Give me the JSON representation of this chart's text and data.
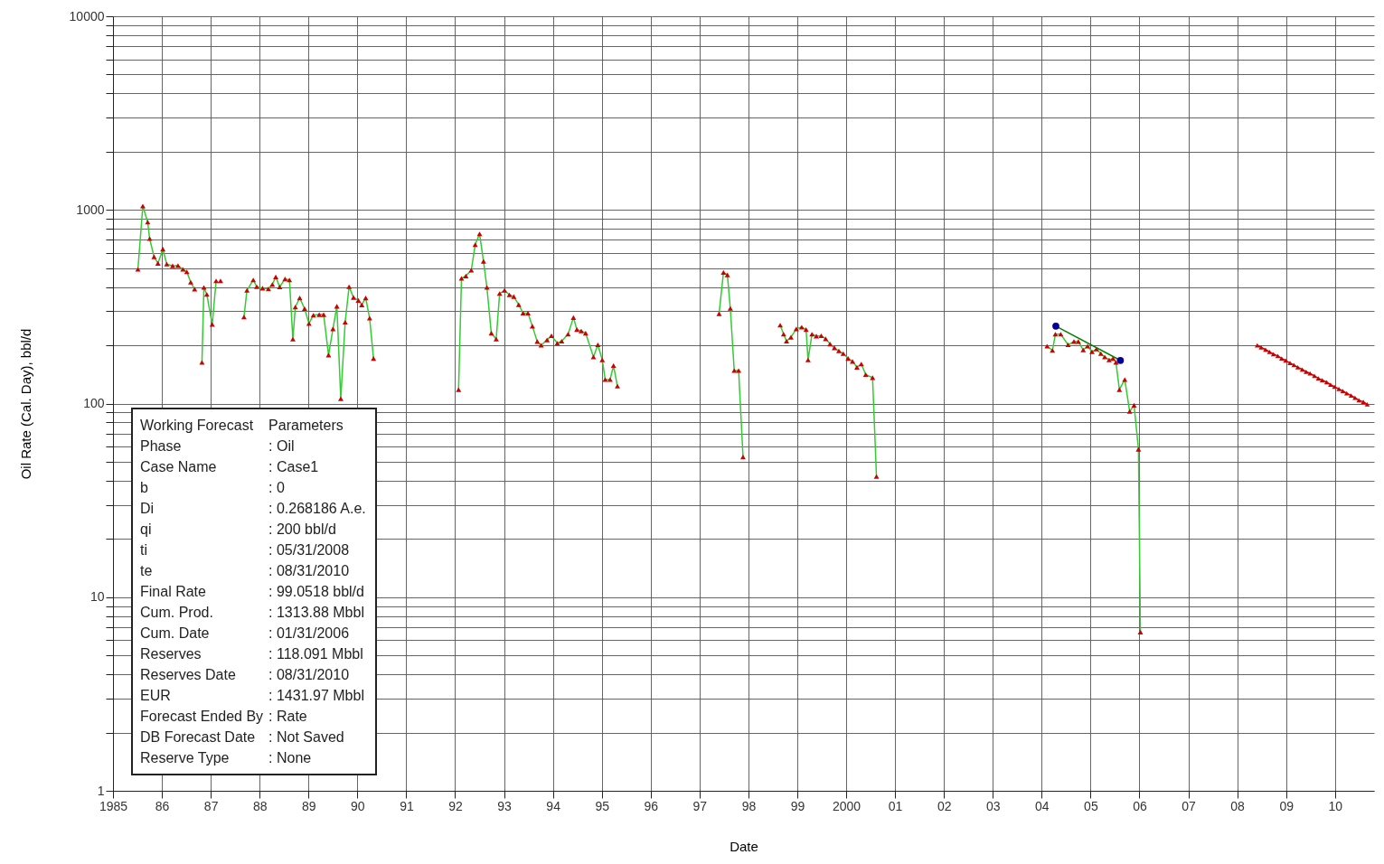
{
  "chart_data": {
    "type": "line",
    "xlabel": "Date",
    "ylabel": "Oil Rate (Cal. Day), bbl/d",
    "log": "y",
    "grid": true,
    "xlim": [
      1985,
      2010.8
    ],
    "ylim": [
      1,
      10000
    ],
    "xticks": [
      1985,
      {
        "value": 1986,
        "label": "86"
      },
      {
        "value": 1987,
        "label": "87"
      },
      {
        "value": 1988,
        "label": "88"
      },
      {
        "value": 1989,
        "label": "89"
      },
      {
        "value": 1990,
        "label": "90"
      },
      {
        "value": 1991,
        "label": "91"
      },
      {
        "value": 1992,
        "label": "92"
      },
      {
        "value": 1993,
        "label": "93"
      },
      {
        "value": 1994,
        "label": "94"
      },
      {
        "value": 1995,
        "label": "95"
      },
      {
        "value": 1996,
        "label": "96"
      },
      {
        "value": 1997,
        "label": "97"
      },
      {
        "value": 1998,
        "label": "98"
      },
      {
        "value": 1999,
        "label": "99"
      },
      2000,
      {
        "value": 2001,
        "label": "01"
      },
      {
        "value": 2002,
        "label": "02"
      },
      {
        "value": 2003,
        "label": "03"
      },
      {
        "value": 2004,
        "label": "04"
      },
      {
        "value": 2005,
        "label": "05"
      },
      {
        "value": 2006,
        "label": "06"
      },
      {
        "value": 2007,
        "label": "07"
      },
      {
        "value": 2008,
        "label": "08"
      },
      {
        "value": 2009,
        "label": "09"
      },
      {
        "value": 2010,
        "label": "10"
      }
    ],
    "yticks": [
      1,
      {
        "value": 2,
        "label": null
      },
      {
        "value": 3,
        "label": null
      },
      {
        "value": 4,
        "label": null
      },
      {
        "value": 5,
        "label": null
      },
      {
        "value": 6,
        "label": null
      },
      {
        "value": 7,
        "label": null
      },
      {
        "value": 8,
        "label": null
      },
      {
        "value": 9,
        "label": null
      },
      10,
      {
        "value": 20,
        "label": null
      },
      {
        "value": 30,
        "label": null
      },
      {
        "value": 40,
        "label": null
      },
      {
        "value": 50,
        "label": null
      },
      {
        "value": 60,
        "label": null
      },
      {
        "value": 70,
        "label": null
      },
      {
        "value": 80,
        "label": null
      },
      {
        "value": 90,
        "label": null
      },
      100,
      {
        "value": 200,
        "label": null
      },
      {
        "value": 300,
        "label": null
      },
      {
        "value": 400,
        "label": null
      },
      {
        "value": 500,
        "label": null
      },
      {
        "value": 600,
        "label": null
      },
      {
        "value": 700,
        "label": null
      },
      {
        "value": 800,
        "label": null
      },
      {
        "value": 900,
        "label": null
      },
      1000,
      {
        "value": 2000,
        "label": null
      },
      {
        "value": 3000,
        "label": null
      },
      {
        "value": 4000,
        "label": null
      },
      {
        "value": 5000,
        "label": null
      },
      {
        "value": 6000,
        "label": null
      },
      {
        "value": 7000,
        "label": null
      },
      {
        "value": 8000,
        "label": null
      },
      {
        "value": 9000,
        "label": null
      },
      10000
    ],
    "annotations": [
      "Working Forecast",
      "Parameters",
      "Phase",
      ": Oil",
      "Case Name",
      ": Case1",
      "b",
      ": 0",
      "Di",
      ": 0.268186 A.e.",
      "qi",
      ": 200 bbl/d",
      "ti",
      ": 05/31/2008",
      "te",
      ": 08/31/2010",
      "Final Rate",
      ": 99.0518 bbl/d",
      "Cum. Prod.",
      ": 1313.88 Mbbl",
      "Cum. Date",
      ": 01/31/2006",
      "Reserves",
      ": 118.091 Mbbl",
      "Reserves Date",
      ": 08/31/2010",
      "EUR",
      ": 1431.97 Mbbl",
      "Forecast Ended By",
      ": Rate",
      "DB Forecast Date",
      ": Not Saved",
      "Reserve Type",
      ": None"
    ],
    "series": [
      {
        "color": "#33cc33",
        "marker": "none",
        "x": [
          1985.51,
          1985.61,
          1985.71,
          1985.75,
          1985.84,
          1985.92,
          1986.02,
          1986.1,
          1986.22,
          1986.33,
          1986.43,
          1986.51,
          1986.59,
          1986.67,
          1986.72,
          1986.82,
          1986.86,
          1986.92,
          1987.03,
          1987.11,
          1987.2,
          1987.3,
          1987.68,
          1987.74,
          1987.87,
          1987.94,
          1988.06,
          1988.18,
          1988.26,
          1988.33,
          1988.41,
          1988.52,
          1988.61,
          1988.68,
          1988.73,
          1988.82,
          1988.92,
          1989.01,
          1989.1,
          1989.22,
          1989.31,
          1989.41,
          1989.5,
          1989.58,
          1989.66,
          1989.75,
          1989.83,
          1989.92,
          1990.02,
          1990.09,
          1990.17,
          1990.25,
          1990.33,
          1991,
          1992.07,
          1992.13,
          1992.22,
          1992.33,
          1992.41,
          1992.5,
          1992.58,
          1992.65,
          1992.74,
          1992.84,
          1992.91,
          1993.01,
          1993.11,
          1993.2,
          1993.3,
          1993.39,
          1993.49,
          1993.58,
          1993.68,
          1993.76,
          1993.88,
          1993.97,
          1994.09,
          1994.18,
          1994.31,
          1994.42,
          1994.49,
          1994.58,
          1994.67,
          1994.83,
          1994.92,
          1995.01,
          1995.07,
          1995.17,
          1995.24,
          1995.32,
          1996,
          1997.4,
          1997.49,
          1997.57,
          1997.63,
          1997.71,
          1997.8,
          1997.89,
          1998.3,
          1998.65,
          1998.72,
          1998.78,
          1998.87,
          1998.98,
          1999.09,
          1999.18,
          1999.22,
          1999.3,
          1999.39,
          1999.49,
          1999.58,
          1999.67,
          1999.76,
          1999.85,
          1999.94,
          2000.04,
          2000.13,
          2000.22,
          2000.31,
          2000.4,
          2000.54,
          2000.62,
          2002,
          2004.11,
          2004.22,
          2004.28,
          2004.39,
          2004.54,
          2004.66,
          2004.75,
          2004.85,
          2004.94,
          2005.03,
          2005.12,
          2005.21,
          2005.29,
          2005.38,
          2005.46,
          2005.52,
          2005.59,
          2005.7,
          2005.8,
          2005.89,
          2005.98,
          2006.02
        ],
        "values": [
          493,
          1047,
          865,
          711,
          573,
          530,
          627,
          525,
          514,
          516,
          493,
          479,
          423,
          390,
          null,
          163,
          398,
          366,
          256,
          430,
          null,
          null,
          280,
          384,
          435,
          401,
          394,
          391,
          412,
          451,
          400,
          440,
          435,
          215,
          315,
          351,
          309,
          259,
          286,
          288,
          288,
          178,
          243,
          318,
          106,
          263,
          401,
          353,
          341,
          323,
          351,
          276,
          171,
          null,
          118,
          443,
          456,
          488,
          661,
          752,
          543,
          398,
          231,
          215,
          370,
          384,
          364,
          357,
          324,
          293,
          293,
          251,
          209,
          200,
          213,
          224,
          205,
          210,
          228,
          278,
          241,
          237,
          231,
          174,
          201,
          168,
          133,
          133,
          157,
          123,
          null,
          291,
          476,
          462,
          310,
          148,
          148,
          53,
          null,
          254,
          228,
          210,
          220,
          243,
          248,
          241,
          168,
          228,
          223,
          224,
          216,
          203,
          194,
          187,
          181,
          171,
          165,
          154,
          160,
          141,
          136,
          42,
          null,
          198,
          188,
          228,
          228,
          201,
          209,
          209,
          189,
          198,
          185,
          191,
          181,
          174,
          168,
          171,
          163,
          118,
          133,
          91,
          98,
          58,
          6.6
        ]
      },
      {
        "type": "scatter",
        "color": "#cc0000",
        "marker": "triangle",
        "x": [
          1985.51,
          1985.61,
          1985.71,
          1985.75,
          1985.84,
          1985.92,
          1986.02,
          1986.1,
          1986.22,
          1986.33,
          1986.43,
          1986.51,
          1986.59,
          1986.67,
          1986.82,
          1986.86,
          1986.92,
          1987.03,
          1987.11,
          1987.2,
          1987.68,
          1987.74,
          1987.87,
          1987.94,
          1988.06,
          1988.18,
          1988.26,
          1988.33,
          1988.41,
          1988.52,
          1988.61,
          1988.68,
          1988.73,
          1988.82,
          1988.92,
          1989.01,
          1989.1,
          1989.22,
          1989.31,
          1989.41,
          1989.5,
          1989.58,
          1989.66,
          1989.75,
          1989.83,
          1989.92,
          1990.02,
          1990.09,
          1990.17,
          1990.25,
          1990.33,
          1992.07,
          1992.13,
          1992.22,
          1992.33,
          1992.41,
          1992.5,
          1992.58,
          1992.65,
          1992.74,
          1992.84,
          1992.91,
          1993.01,
          1993.11,
          1993.2,
          1993.3,
          1993.39,
          1993.49,
          1993.58,
          1993.68,
          1993.76,
          1993.88,
          1993.97,
          1994.09,
          1994.18,
          1994.31,
          1994.42,
          1994.49,
          1994.58,
          1994.67,
          1994.83,
          1994.92,
          1995.01,
          1995.07,
          1995.17,
          1995.24,
          1995.32,
          1997.4,
          1997.49,
          1997.57,
          1997.63,
          1997.71,
          1997.8,
          1997.89,
          1998.65,
          1998.72,
          1998.78,
          1998.87,
          1998.98,
          1999.09,
          1999.18,
          1999.22,
          1999.3,
          1999.39,
          1999.49,
          1999.58,
          1999.67,
          1999.76,
          1999.85,
          1999.94,
          2000.04,
          2000.13,
          2000.22,
          2000.31,
          2000.4,
          2000.54,
          2000.62,
          2004.11,
          2004.22,
          2004.28,
          2004.39,
          2004.54,
          2004.66,
          2004.75,
          2004.85,
          2004.94,
          2005.03,
          2005.12,
          2005.21,
          2005.29,
          2005.38,
          2005.46,
          2005.52,
          2005.59,
          2005.7,
          2005.8,
          2005.89,
          2005.98,
          2006.02
        ],
        "values": [
          493,
          1047,
          865,
          711,
          573,
          530,
          627,
          525,
          514,
          516,
          493,
          479,
          423,
          390,
          163,
          398,
          366,
          256,
          430,
          430,
          280,
          384,
          435,
          401,
          394,
          391,
          412,
          451,
          400,
          440,
          435,
          215,
          315,
          351,
          309,
          259,
          286,
          288,
          288,
          178,
          243,
          318,
          106,
          263,
          401,
          353,
          341,
          323,
          351,
          276,
          171,
          118,
          443,
          456,
          488,
          661,
          752,
          543,
          398,
          231,
          215,
          370,
          384,
          364,
          357,
          324,
          293,
          293,
          251,
          209,
          200,
          213,
          224,
          205,
          210,
          228,
          278,
          241,
          237,
          231,
          174,
          201,
          168,
          133,
          133,
          157,
          123,
          291,
          476,
          462,
          310,
          148,
          148,
          53,
          254,
          228,
          210,
          220,
          243,
          248,
          241,
          168,
          228,
          223,
          224,
          216,
          203,
          194,
          187,
          181,
          171,
          165,
          154,
          160,
          141,
          136,
          42,
          198,
          188,
          228,
          228,
          201,
          209,
          209,
          189,
          198,
          185,
          191,
          181,
          174,
          168,
          171,
          163,
          118,
          133,
          91,
          98,
          58,
          6.6
        ]
      },
      {
        "color": "#008000",
        "marker": "none",
        "x": [
          2004.29,
          2005.61
        ],
        "values": [
          251,
          167
        ]
      },
      {
        "type": "scatter",
        "color": "#000099",
        "marker": "circle",
        "x": [
          2004.29,
          2005.61
        ],
        "values": [
          251,
          167
        ]
      },
      {
        "color": "#cc0000",
        "marker": "triangle",
        "x": [
          2008.41,
          2008.49,
          2008.58,
          2008.66,
          2008.74,
          2008.83,
          2008.91,
          2008.99,
          2009.08,
          2009.16,
          2009.24,
          2009.33,
          2009.41,
          2009.49,
          2009.58,
          2009.66,
          2009.74,
          2009.83,
          2009.91,
          2009.99,
          2010.08,
          2010.16,
          2010.24,
          2010.33,
          2010.41,
          2010.49,
          2010.58,
          2010.66
        ],
        "values": [
          200,
          195,
          190,
          185,
          180,
          176,
          171,
          167,
          162,
          158,
          154,
          150,
          146,
          143,
          139,
          135,
          132,
          129,
          125,
          122,
          119,
          116,
          113,
          110,
          107,
          104,
          102,
          99
        ]
      }
    ]
  }
}
